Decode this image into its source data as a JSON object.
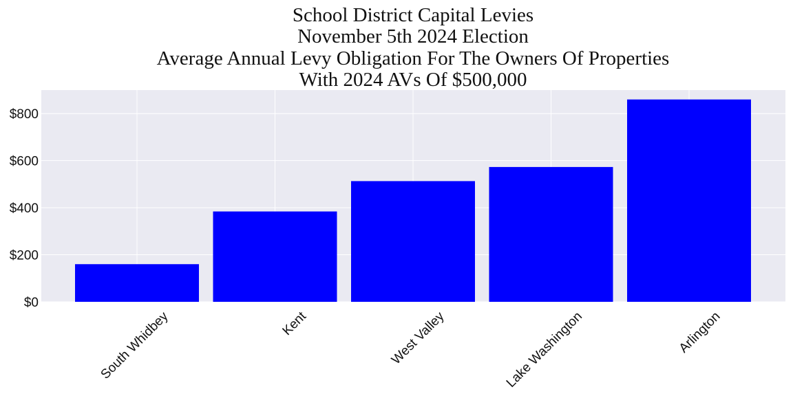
{
  "chart_data": {
    "type": "bar",
    "title_lines": [
      "School District Capital Levies",
      "November 5th 2024 Election",
      "Average Annual Levy Obligation For The Owners Of Properties",
      "With 2024 AVs Of $500,000"
    ],
    "categories": [
      "South Whidbey",
      "Kent",
      "West Valley",
      "Lake Washington",
      "Arlington"
    ],
    "values": [
      160,
      384,
      513,
      573,
      860
    ],
    "xlabel": "",
    "ylabel": "",
    "ylim": [
      0,
      900
    ],
    "yticks": [
      0,
      200,
      400,
      600,
      800
    ],
    "ytick_labels": [
      "$0",
      "$200",
      "$400",
      "$600",
      "$800"
    ],
    "grid": true,
    "bar_color": "#0000ff",
    "plot_background": "#eaeaf2",
    "grid_color": "#ffffff"
  }
}
